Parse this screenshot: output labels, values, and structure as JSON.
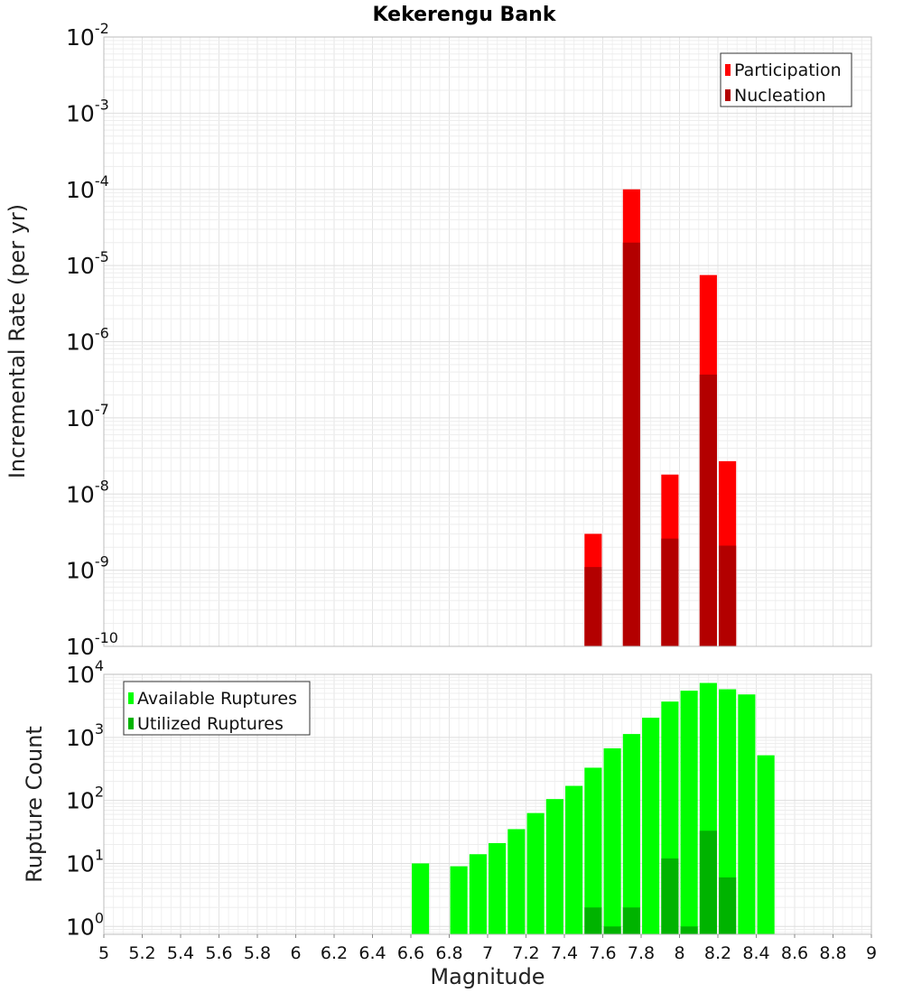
{
  "chart_data": [
    {
      "type": "bar",
      "title": "Kekerengu Bank",
      "xlabel": "",
      "ylabel": "Incremental Rate (per yr)",
      "yscale": "log",
      "xlim": [
        5,
        9
      ],
      "ylim": [
        1e-10,
        0.01
      ],
      "y_ticks": [
        {
          "base": "10",
          "exp": "-10",
          "value": 1e-10
        },
        {
          "base": "10",
          "exp": "-9",
          "value": 1e-09
        },
        {
          "base": "10",
          "exp": "-8",
          "value": 1e-08
        },
        {
          "base": "10",
          "exp": "-7",
          "value": 1e-07
        },
        {
          "base": "10",
          "exp": "-6",
          "value": 1e-06
        },
        {
          "base": "10",
          "exp": "-5",
          "value": 1e-05
        },
        {
          "base": "10",
          "exp": "-4",
          "value": 0.0001
        },
        {
          "base": "10",
          "exp": "-3",
          "value": 0.001
        },
        {
          "base": "10",
          "exp": "-2",
          "value": 0.01
        }
      ],
      "grid": true,
      "legend_position": "top-right",
      "series": [
        {
          "name": "Participation",
          "color": "#ff0000",
          "x": [
            7.55,
            7.75,
            7.95,
            8.15,
            8.25
          ],
          "values": [
            3e-09,
            0.0001,
            1.8e-08,
            7.5e-06,
            2.7e-08
          ]
        },
        {
          "name": "Nucleation",
          "color": "#b30000",
          "x": [
            7.55,
            7.75,
            7.95,
            8.15,
            8.25
          ],
          "values": [
            1.1e-09,
            2e-05,
            2.6e-09,
            3.7e-07,
            2.1e-09
          ]
        }
      ]
    },
    {
      "type": "bar",
      "title": "",
      "xlabel": "Magnitude",
      "ylabel": "Rupture Count",
      "yscale": "log",
      "xlim": [
        5,
        9
      ],
      "ylim": [
        0.75,
        10000
      ],
      "x_ticks": [
        "5",
        "5.2",
        "5.4",
        "5.6",
        "5.8",
        "6",
        "6.2",
        "6.4",
        "6.6",
        "6.8",
        "7",
        "7.2",
        "7.4",
        "7.6",
        "7.8",
        "8",
        "8.2",
        "8.4",
        "8.6",
        "8.8",
        "9"
      ],
      "y_ticks": [
        {
          "base": "10",
          "exp": "0",
          "value": 1
        },
        {
          "base": "10",
          "exp": "1",
          "value": 10
        },
        {
          "base": "10",
          "exp": "2",
          "value": 100
        },
        {
          "base": "10",
          "exp": "3",
          "value": 1000
        },
        {
          "base": "10",
          "exp": "4",
          "value": 10000
        }
      ],
      "grid": true,
      "legend_position": "top-left",
      "series": [
        {
          "name": "Available Ruptures",
          "color": "#00ff00",
          "x": [
            6.65,
            6.85,
            6.95,
            7.05,
            7.15,
            7.25,
            7.35,
            7.45,
            7.55,
            7.65,
            7.75,
            7.85,
            7.95,
            8.05,
            8.15,
            8.25,
            8.35,
            8.45
          ],
          "values": [
            10,
            9,
            14,
            21,
            35,
            63,
            105,
            170,
            330,
            670,
            1130,
            2050,
            3700,
            5500,
            7300,
            5800,
            4800,
            520
          ]
        },
        {
          "name": "Utilized Ruptures",
          "color": "#00b300",
          "x": [
            7.55,
            7.65,
            7.75,
            7.95,
            8.05,
            8.15,
            8.25
          ],
          "values": [
            2,
            1,
            2,
            12,
            1,
            33,
            6
          ]
        }
      ]
    }
  ]
}
